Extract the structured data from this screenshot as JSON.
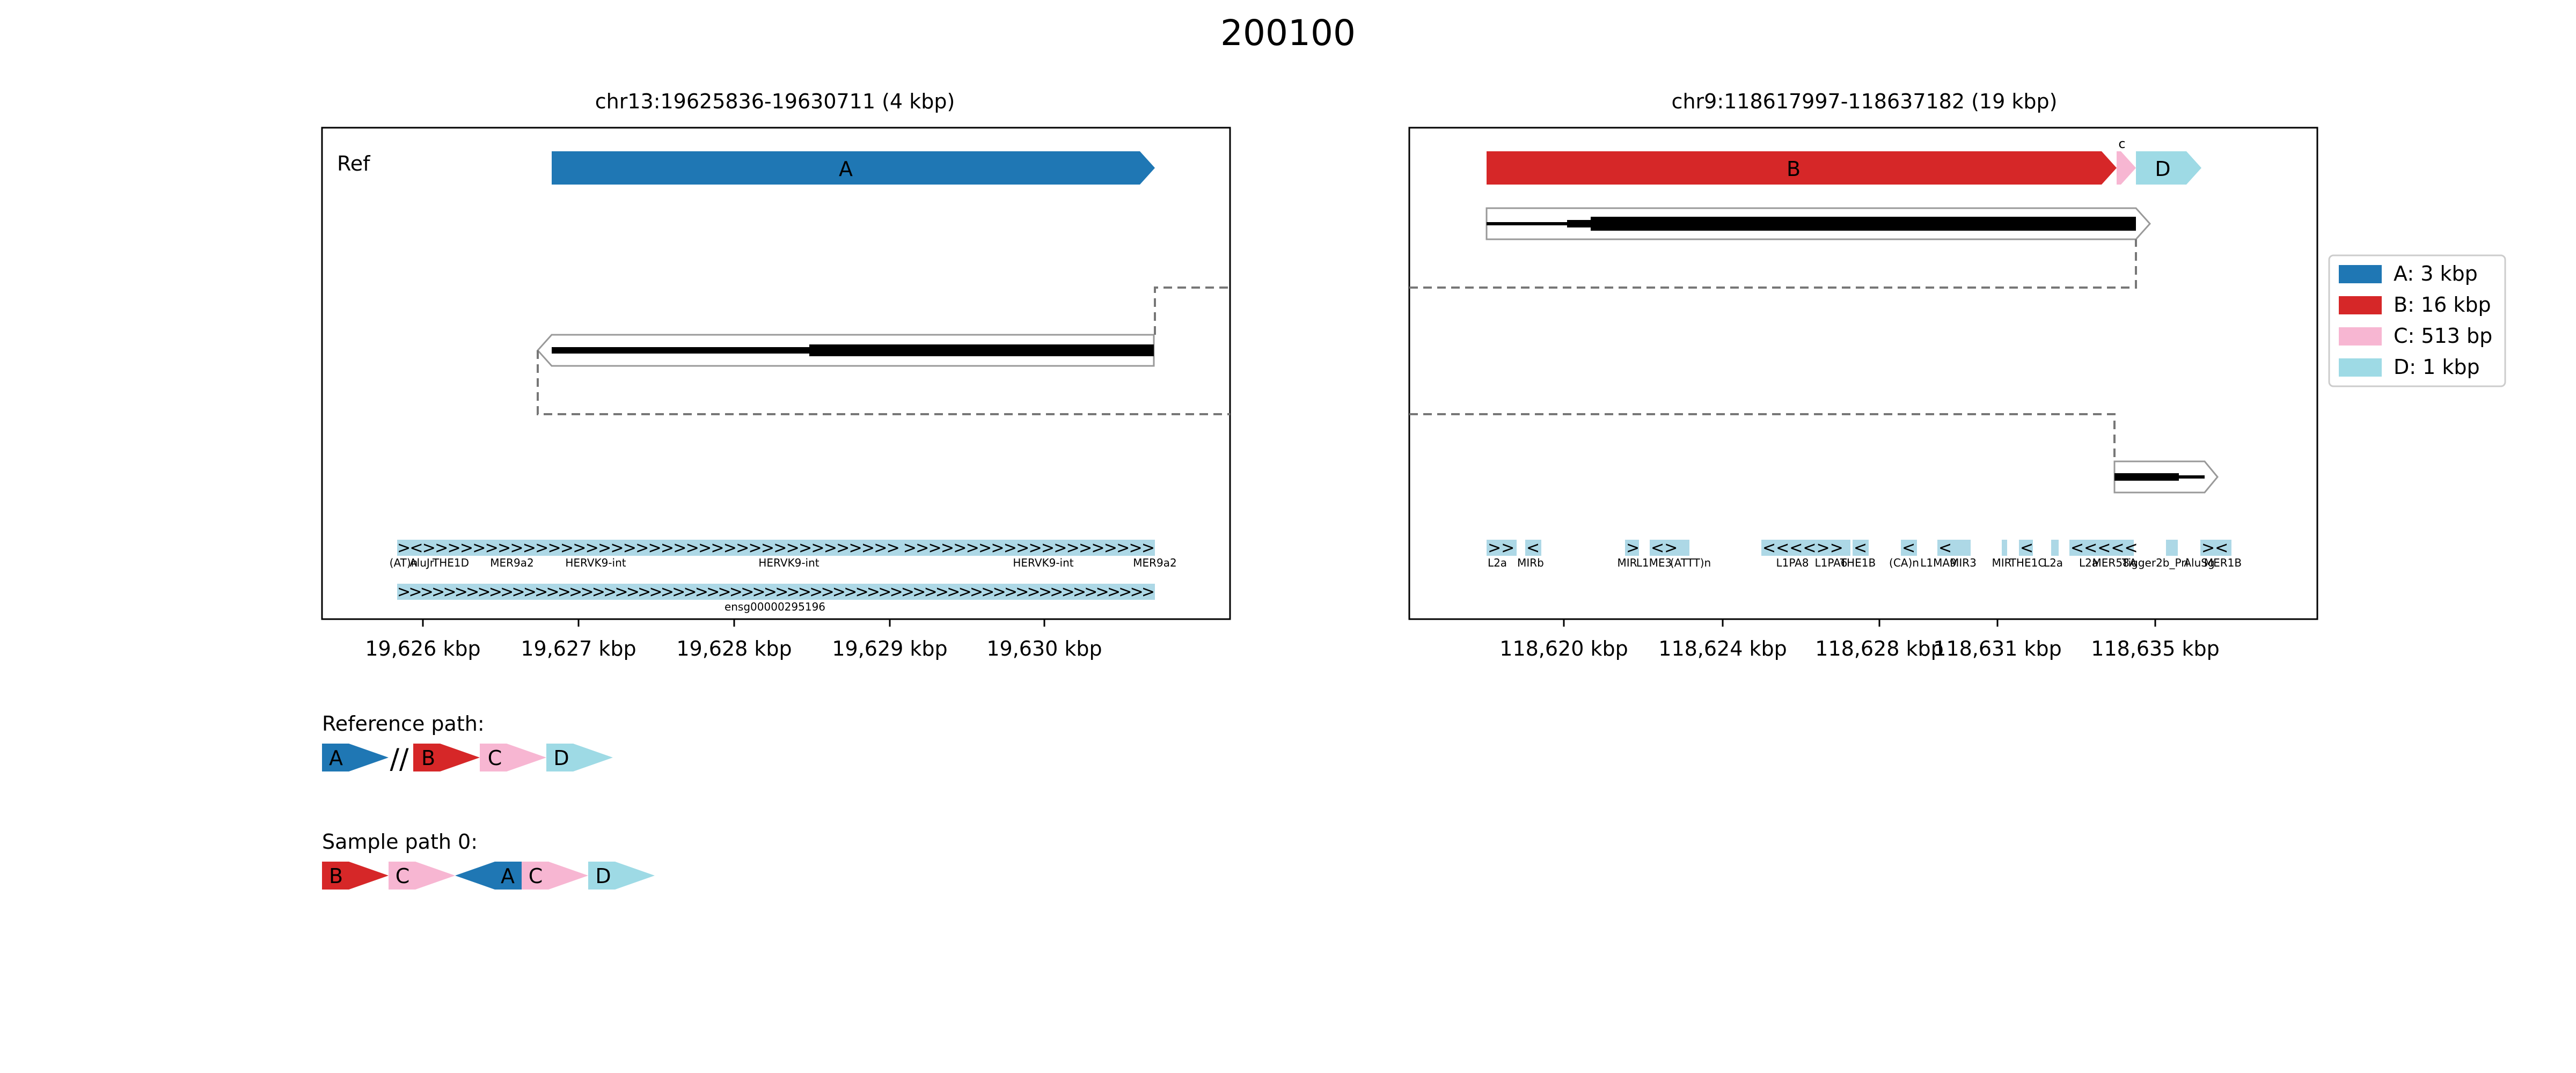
{
  "title": "200100",
  "panels": [
    {
      "title": "chr13:19625836-19630711 (4 kbp)",
      "ref_label": "Ref",
      "x_ticks": [
        "19,626 kbp",
        "19,627 kbp",
        "19,628 kbp",
        "19,629 kbp",
        "19,630 kbp"
      ],
      "repeat_labels": [
        "(AT)n",
        "AluJr",
        "THE1D",
        "MER9a2",
        "HERVK9-int",
        "HERVK9-int",
        "HERVK9-int",
        "MER9a2"
      ],
      "gene_label": "ensg00000295196"
    },
    {
      "title": "chr9:118617997-118637182 (19 kbp)",
      "x_ticks": [
        "118,620 kbp",
        "118,624 kbp",
        "118,628 kbp",
        "118,631 kbp",
        "118,635 kbp"
      ],
      "repeat_labels": [
        "L2a",
        "MIRb",
        "MIR",
        "L1ME3",
        "(ATTT)n",
        "L1PA8",
        "L1PA6",
        "THE1B",
        "(CA)n",
        "L1MA9",
        "MIR3",
        "MIR",
        "THE1C",
        "L2a",
        "L2a",
        "MER58A",
        "Tigger2b_Pri",
        "AluSg",
        "MER1B"
      ]
    }
  ],
  "blocks": [
    {
      "id": "A",
      "label": "A",
      "color": "#1f77b4"
    },
    {
      "id": "B",
      "label": "B",
      "color": "#d62728"
    },
    {
      "id": "C",
      "label": "C",
      "color": "#f7b6d2"
    },
    {
      "id": "C_small",
      "label": "c",
      "color": "#f7b6d2"
    },
    {
      "id": "D",
      "label": "D",
      "color": "#9edae5"
    }
  ],
  "legend": [
    {
      "label": "A: 3 kbp",
      "color": "#1f77b4"
    },
    {
      "label": "B: 16 kbp",
      "color": "#d62728"
    },
    {
      "label": "C: 513 bp",
      "color": "#f7b6d2"
    },
    {
      "label": "D: 1 kbp",
      "color": "#9edae5"
    }
  ],
  "reference_path": {
    "label": "Reference path:",
    "separator": "//",
    "items": [
      {
        "label": "A",
        "color": "#1f77b4"
      },
      {
        "label": "B",
        "color": "#d62728"
      },
      {
        "label": "C",
        "color": "#f7b6d2"
      },
      {
        "label": "D",
        "color": "#9edae5"
      }
    ]
  },
  "sample_path": {
    "label": "Sample path 0:",
    "items": [
      {
        "label": "B",
        "color": "#d62728"
      },
      {
        "label": "C",
        "color": "#f7b6d2"
      },
      {
        "label": "A",
        "color": "#1f77b4"
      },
      {
        "label": "C",
        "color": "#f7b6d2"
      },
      {
        "label": "D",
        "color": "#9edae5"
      }
    ]
  }
}
